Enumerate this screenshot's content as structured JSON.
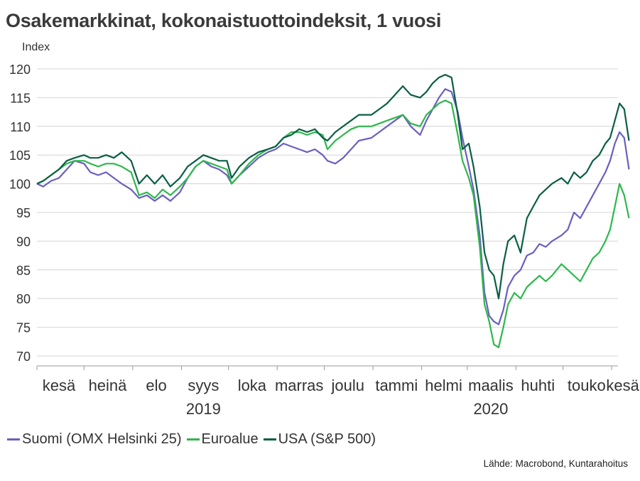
{
  "colors": {
    "suomi": "#6a5fc1",
    "euroalue": "#2db84b",
    "usa": "#0a5e45",
    "grid": "#d4d4d4",
    "axis": "#9a9a9a"
  },
  "chart_data": {
    "type": "line",
    "title": "Osakemarkkinat, kokonaistuottoindeksit, 1 vuosi",
    "ylabel": "Index",
    "xlabel": "",
    "ylim": [
      70,
      120
    ],
    "yticks": [
      70,
      75,
      80,
      85,
      90,
      95,
      100,
      105,
      110,
      115,
      120
    ],
    "grid": "horizontal",
    "legend_position": "bottom",
    "x_axis": {
      "start": "2019-06-01",
      "end": "2020-06-05",
      "month_labels": [
        {
          "label": "kesä",
          "date": "2019-06-15"
        },
        {
          "label": "heinä",
          "date": "2019-07-16"
        },
        {
          "label": "elo",
          "date": "2019-08-16"
        },
        {
          "label": "syys",
          "date": "2019-09-15"
        },
        {
          "label": "loka",
          "date": "2019-10-16"
        },
        {
          "label": "marras",
          "date": "2019-11-15"
        },
        {
          "label": "joulu",
          "date": "2019-12-16"
        },
        {
          "label": "tammi",
          "date": "2020-01-16"
        },
        {
          "label": "helmi",
          "date": "2020-02-15"
        },
        {
          "label": "maalis",
          "date": "2020-03-16"
        },
        {
          "label": "huhti",
          "date": "2020-04-15"
        },
        {
          "label": "touko",
          "date": "2020-05-16"
        },
        {
          "label": "kesä",
          "date": "2020-06-08"
        }
      ],
      "month_boundaries": [
        "2019-06-01",
        "2019-07-01",
        "2019-08-01",
        "2019-09-01",
        "2019-10-01",
        "2019-11-01",
        "2019-12-01",
        "2020-01-01",
        "2020-02-01",
        "2020-03-01",
        "2020-04-01",
        "2020-05-01",
        "2020-06-01"
      ],
      "year_labels": [
        {
          "label": "2019",
          "date": "2019-09-15"
        },
        {
          "label": "2020",
          "date": "2020-03-16"
        }
      ]
    },
    "series": [
      {
        "name": "Suomi (OMX Helsinki 25)",
        "color_key": "suomi",
        "points": [
          [
            "2019-06-01",
            100
          ],
          [
            "2019-06-05",
            99.5
          ],
          [
            "2019-06-10",
            100.5
          ],
          [
            "2019-06-15",
            101
          ],
          [
            "2019-06-20",
            102.5
          ],
          [
            "2019-06-25",
            104
          ],
          [
            "2019-07-01",
            103.5
          ],
          [
            "2019-07-05",
            102
          ],
          [
            "2019-07-10",
            101.5
          ],
          [
            "2019-07-15",
            102
          ],
          [
            "2019-07-20",
            101
          ],
          [
            "2019-07-25",
            100
          ],
          [
            "2019-07-31",
            99
          ],
          [
            "2019-08-05",
            97.5
          ],
          [
            "2019-08-10",
            98
          ],
          [
            "2019-08-15",
            97
          ],
          [
            "2019-08-20",
            98
          ],
          [
            "2019-08-25",
            97
          ],
          [
            "2019-08-31",
            98.5
          ],
          [
            "2019-09-05",
            101
          ],
          [
            "2019-09-10",
            103
          ],
          [
            "2019-09-15",
            104
          ],
          [
            "2019-09-20",
            103
          ],
          [
            "2019-09-25",
            102.5
          ],
          [
            "2019-09-30",
            101.5
          ],
          [
            "2019-10-03",
            100
          ],
          [
            "2019-10-08",
            101.5
          ],
          [
            "2019-10-14",
            103
          ],
          [
            "2019-10-20",
            104.5
          ],
          [
            "2019-10-26",
            105.5
          ],
          [
            "2019-10-31",
            106
          ],
          [
            "2019-11-05",
            107
          ],
          [
            "2019-11-10",
            106.5
          ],
          [
            "2019-11-15",
            106
          ],
          [
            "2019-11-20",
            105.5
          ],
          [
            "2019-11-25",
            106
          ],
          [
            "2019-11-30",
            105
          ],
          [
            "2019-12-03",
            104
          ],
          [
            "2019-12-08",
            103.5
          ],
          [
            "2019-12-13",
            104.5
          ],
          [
            "2019-12-18",
            106
          ],
          [
            "2019-12-23",
            107.5
          ],
          [
            "2019-12-31",
            108
          ],
          [
            "2020-01-05",
            109
          ],
          [
            "2020-01-10",
            110
          ],
          [
            "2020-01-15",
            111
          ],
          [
            "2020-01-20",
            112
          ],
          [
            "2020-01-25",
            110
          ],
          [
            "2020-01-31",
            108.5
          ],
          [
            "2020-02-04",
            111
          ],
          [
            "2020-02-08",
            113
          ],
          [
            "2020-02-12",
            115
          ],
          [
            "2020-02-16",
            116.5
          ],
          [
            "2020-02-20",
            116
          ],
          [
            "2020-02-24",
            112.5
          ],
          [
            "2020-02-27",
            108
          ],
          [
            "2020-03-02",
            103
          ],
          [
            "2020-03-05",
            99
          ],
          [
            "2020-03-09",
            91
          ],
          [
            "2020-03-12",
            81
          ],
          [
            "2020-03-15",
            77
          ],
          [
            "2020-03-18",
            76
          ],
          [
            "2020-03-21",
            75.5
          ],
          [
            "2020-03-24",
            78
          ],
          [
            "2020-03-27",
            82
          ],
          [
            "2020-03-31",
            84
          ],
          [
            "2020-04-04",
            85
          ],
          [
            "2020-04-08",
            87.5
          ],
          [
            "2020-04-12",
            88
          ],
          [
            "2020-04-16",
            89.5
          ],
          [
            "2020-04-20",
            89
          ],
          [
            "2020-04-24",
            90
          ],
          [
            "2020-04-30",
            91
          ],
          [
            "2020-05-04",
            92
          ],
          [
            "2020-05-08",
            95
          ],
          [
            "2020-05-12",
            94
          ],
          [
            "2020-05-16",
            96
          ],
          [
            "2020-05-20",
            98
          ],
          [
            "2020-05-24",
            100
          ],
          [
            "2020-05-28",
            102
          ],
          [
            "2020-05-31",
            104
          ],
          [
            "2020-06-03",
            107
          ],
          [
            "2020-06-06",
            109
          ],
          [
            "2020-06-09",
            108
          ],
          [
            "2020-06-12",
            102.5
          ]
        ]
      },
      {
        "name": "Euroalue",
        "color_key": "euroalue",
        "points": [
          [
            "2019-06-01",
            100
          ],
          [
            "2019-06-05",
            100.5
          ],
          [
            "2019-06-10",
            101.5
          ],
          [
            "2019-06-15",
            102.5
          ],
          [
            "2019-06-20",
            103.5
          ],
          [
            "2019-06-25",
            104
          ],
          [
            "2019-07-01",
            104
          ],
          [
            "2019-07-05",
            103.5
          ],
          [
            "2019-07-10",
            103
          ],
          [
            "2019-07-15",
            103.5
          ],
          [
            "2019-07-20",
            103.5
          ],
          [
            "2019-07-25",
            103
          ],
          [
            "2019-07-31",
            102
          ],
          [
            "2019-08-05",
            98
          ],
          [
            "2019-08-10",
            98.5
          ],
          [
            "2019-08-15",
            97.5
          ],
          [
            "2019-08-20",
            99
          ],
          [
            "2019-08-25",
            98
          ],
          [
            "2019-08-31",
            99.5
          ],
          [
            "2019-09-05",
            101
          ],
          [
            "2019-09-10",
            103
          ],
          [
            "2019-09-15",
            104
          ],
          [
            "2019-09-20",
            103.5
          ],
          [
            "2019-09-25",
            103
          ],
          [
            "2019-09-30",
            102.5
          ],
          [
            "2019-10-03",
            100
          ],
          [
            "2019-10-08",
            101.5
          ],
          [
            "2019-10-14",
            103.5
          ],
          [
            "2019-10-20",
            105
          ],
          [
            "2019-10-26",
            106
          ],
          [
            "2019-10-31",
            106.5
          ],
          [
            "2019-11-05",
            108
          ],
          [
            "2019-11-10",
            109
          ],
          [
            "2019-11-15",
            109
          ],
          [
            "2019-11-20",
            108.5
          ],
          [
            "2019-11-25",
            109
          ],
          [
            "2019-11-30",
            108.5
          ],
          [
            "2019-12-03",
            106
          ],
          [
            "2019-12-08",
            107.5
          ],
          [
            "2019-12-13",
            108.5
          ],
          [
            "2019-12-18",
            109.5
          ],
          [
            "2019-12-23",
            110
          ],
          [
            "2019-12-31",
            110
          ],
          [
            "2020-01-05",
            110.5
          ],
          [
            "2020-01-10",
            111
          ],
          [
            "2020-01-15",
            111.5
          ],
          [
            "2020-01-20",
            112
          ],
          [
            "2020-01-25",
            110.5
          ],
          [
            "2020-01-31",
            110
          ],
          [
            "2020-02-04",
            112
          ],
          [
            "2020-02-08",
            113
          ],
          [
            "2020-02-12",
            114
          ],
          [
            "2020-02-16",
            114.5
          ],
          [
            "2020-02-20",
            114
          ],
          [
            "2020-02-24",
            108.5
          ],
          [
            "2020-02-27",
            104
          ],
          [
            "2020-03-02",
            101
          ],
          [
            "2020-03-05",
            98
          ],
          [
            "2020-03-09",
            89
          ],
          [
            "2020-03-12",
            79
          ],
          [
            "2020-03-15",
            76
          ],
          [
            "2020-03-18",
            72
          ],
          [
            "2020-03-21",
            71.5
          ],
          [
            "2020-03-24",
            75
          ],
          [
            "2020-03-27",
            79
          ],
          [
            "2020-03-31",
            81
          ],
          [
            "2020-04-04",
            80
          ],
          [
            "2020-04-08",
            82
          ],
          [
            "2020-04-12",
            83
          ],
          [
            "2020-04-16",
            84
          ],
          [
            "2020-04-20",
            83
          ],
          [
            "2020-04-24",
            84
          ],
          [
            "2020-04-30",
            86
          ],
          [
            "2020-05-04",
            85
          ],
          [
            "2020-05-08",
            84
          ],
          [
            "2020-05-12",
            83
          ],
          [
            "2020-05-16",
            85
          ],
          [
            "2020-05-20",
            87
          ],
          [
            "2020-05-24",
            88
          ],
          [
            "2020-05-28",
            90
          ],
          [
            "2020-05-31",
            92
          ],
          [
            "2020-06-03",
            96
          ],
          [
            "2020-06-06",
            100
          ],
          [
            "2020-06-09",
            98
          ],
          [
            "2020-06-12",
            94
          ]
        ]
      },
      {
        "name": "USA (S&P 500)",
        "color_key": "usa",
        "points": [
          [
            "2019-06-01",
            100
          ],
          [
            "2019-06-05",
            100.5
          ],
          [
            "2019-06-10",
            101.5
          ],
          [
            "2019-06-15",
            102.5
          ],
          [
            "2019-06-20",
            104
          ],
          [
            "2019-06-25",
            104.5
          ],
          [
            "2019-07-01",
            105
          ],
          [
            "2019-07-05",
            104.5
          ],
          [
            "2019-07-10",
            104.5
          ],
          [
            "2019-07-15",
            105
          ],
          [
            "2019-07-20",
            104.5
          ],
          [
            "2019-07-25",
            105.5
          ],
          [
            "2019-07-31",
            104
          ],
          [
            "2019-08-05",
            100
          ],
          [
            "2019-08-10",
            101.5
          ],
          [
            "2019-08-15",
            100
          ],
          [
            "2019-08-20",
            101.5
          ],
          [
            "2019-08-25",
            99.5
          ],
          [
            "2019-08-31",
            101
          ],
          [
            "2019-09-05",
            103
          ],
          [
            "2019-09-10",
            104
          ],
          [
            "2019-09-15",
            105
          ],
          [
            "2019-09-20",
            104.5
          ],
          [
            "2019-09-25",
            104
          ],
          [
            "2019-09-30",
            104
          ],
          [
            "2019-10-03",
            101
          ],
          [
            "2019-10-08",
            103
          ],
          [
            "2019-10-14",
            104.5
          ],
          [
            "2019-10-20",
            105.5
          ],
          [
            "2019-10-26",
            106
          ],
          [
            "2019-10-31",
            106.5
          ],
          [
            "2019-11-05",
            108
          ],
          [
            "2019-11-10",
            108.5
          ],
          [
            "2019-11-15",
            109.5
          ],
          [
            "2019-11-20",
            109
          ],
          [
            "2019-11-25",
            109.5
          ],
          [
            "2019-11-30",
            108
          ],
          [
            "2019-12-03",
            107.5
          ],
          [
            "2019-12-08",
            109
          ],
          [
            "2019-12-13",
            110
          ],
          [
            "2019-12-18",
            111
          ],
          [
            "2019-12-23",
            112
          ],
          [
            "2019-12-31",
            112
          ],
          [
            "2020-01-05",
            113
          ],
          [
            "2020-01-10",
            114
          ],
          [
            "2020-01-15",
            115.5
          ],
          [
            "2020-01-20",
            117
          ],
          [
            "2020-01-25",
            115.5
          ],
          [
            "2020-01-31",
            115
          ],
          [
            "2020-02-04",
            116
          ],
          [
            "2020-02-08",
            117.5
          ],
          [
            "2020-02-12",
            118.5
          ],
          [
            "2020-02-16",
            119
          ],
          [
            "2020-02-20",
            118.5
          ],
          [
            "2020-02-24",
            112
          ],
          [
            "2020-02-27",
            106
          ],
          [
            "2020-03-02",
            107
          ],
          [
            "2020-03-05",
            103
          ],
          [
            "2020-03-09",
            96
          ],
          [
            "2020-03-12",
            88
          ],
          [
            "2020-03-15",
            85
          ],
          [
            "2020-03-18",
            84
          ],
          [
            "2020-03-21",
            80
          ],
          [
            "2020-03-24",
            86
          ],
          [
            "2020-03-27",
            90
          ],
          [
            "2020-03-31",
            91
          ],
          [
            "2020-04-04",
            88
          ],
          [
            "2020-04-08",
            94
          ],
          [
            "2020-04-12",
            96
          ],
          [
            "2020-04-16",
            98
          ],
          [
            "2020-04-20",
            99
          ],
          [
            "2020-04-24",
            100
          ],
          [
            "2020-04-30",
            101
          ],
          [
            "2020-05-04",
            100
          ],
          [
            "2020-05-08",
            102
          ],
          [
            "2020-05-12",
            101
          ],
          [
            "2020-05-16",
            102
          ],
          [
            "2020-05-20",
            104
          ],
          [
            "2020-05-24",
            105
          ],
          [
            "2020-05-28",
            107
          ],
          [
            "2020-05-31",
            108
          ],
          [
            "2020-06-03",
            111
          ],
          [
            "2020-06-06",
            114
          ],
          [
            "2020-06-09",
            113
          ],
          [
            "2020-06-12",
            107.5
          ]
        ]
      }
    ]
  },
  "source_note": "Lähde: Macrobond, Kuntarahoitus"
}
